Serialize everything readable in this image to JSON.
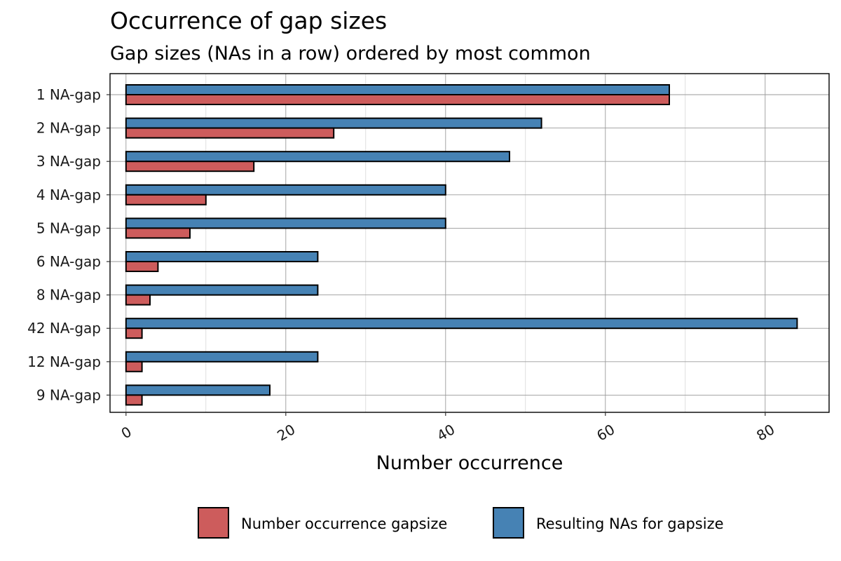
{
  "chart_data": {
    "type": "bar",
    "orientation": "horizontal",
    "title": "Occurrence of gap sizes",
    "subtitle": "Gap sizes (NAs in a row) ordered by most common",
    "xlabel": "Number occurrence",
    "ylabel": "",
    "xlim": [
      -2,
      88
    ],
    "xticks": [
      0,
      20,
      40,
      60,
      80
    ],
    "grid": true,
    "legend_position": "bottom",
    "categories": [
      "1 NA-gap",
      "2 NA-gap",
      "3 NA-gap",
      "4 NA-gap",
      "5 NA-gap",
      "6 NA-gap",
      "8 NA-gap",
      "42 NA-gap",
      "12 NA-gap",
      "9 NA-gap"
    ],
    "series": [
      {
        "name": "Number occurrence gapsize",
        "color": "#CD5C5C",
        "values": [
          68,
          26,
          16,
          10,
          8,
          4,
          3,
          2,
          2,
          2
        ]
      },
      {
        "name": "Resulting NAs for gapsize",
        "color": "#4682B4",
        "values": [
          68,
          52,
          48,
          40,
          40,
          24,
          24,
          84,
          24,
          18
        ]
      }
    ]
  }
}
